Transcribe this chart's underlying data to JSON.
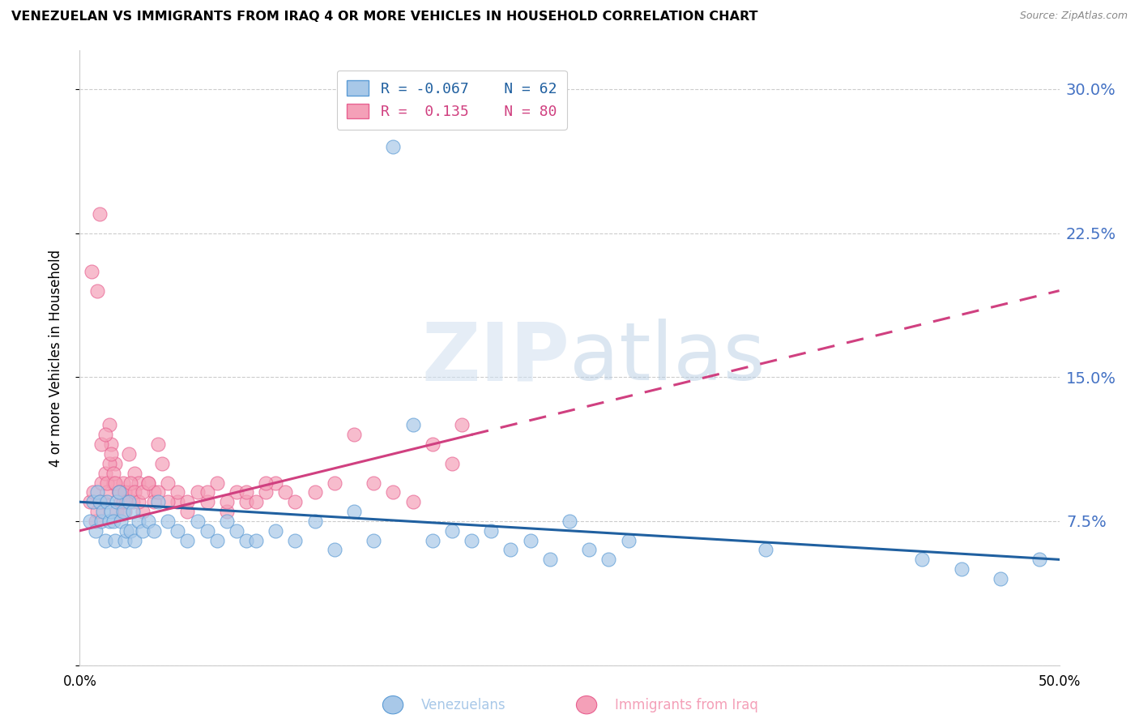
{
  "title": "VENEZUELAN VS IMMIGRANTS FROM IRAQ 4 OR MORE VEHICLES IN HOUSEHOLD CORRELATION CHART",
  "source": "Source: ZipAtlas.com",
  "ylabel": "4 or more Vehicles in Household",
  "xmin": 0.0,
  "xmax": 50.0,
  "ymin": 0.0,
  "ymax": 32.0,
  "yticks": [
    0.0,
    7.5,
    15.0,
    22.5,
    30.0
  ],
  "ytick_labels": [
    "",
    "7.5%",
    "15.0%",
    "22.5%",
    "30.0%"
  ],
  "blue_color": "#a8c8e8",
  "pink_color": "#f4a0b8",
  "blue_edge": "#5b9bd5",
  "pink_edge": "#e86090",
  "trend_blue": "#2060a0",
  "trend_pink": "#d04080",
  "legend_R_blue": "-0.067",
  "legend_N_blue": "62",
  "legend_R_pink": "0.135",
  "legend_N_pink": "80",
  "legend_label_blue": "Venezuelans",
  "legend_label_pink": "Immigrants from Iraq",
  "watermark_zip": "ZIP",
  "watermark_atlas": "atlas",
  "blue_x": [
    0.5,
    0.7,
    0.8,
    0.9,
    1.0,
    1.1,
    1.2,
    1.3,
    1.4,
    1.5,
    1.6,
    1.7,
    1.8,
    1.9,
    2.0,
    2.1,
    2.2,
    2.3,
    2.4,
    2.5,
    2.6,
    2.7,
    2.8,
    3.0,
    3.2,
    3.5,
    3.8,
    4.0,
    4.5,
    5.0,
    5.5,
    6.0,
    6.5,
    7.0,
    7.5,
    8.0,
    8.5,
    9.0,
    10.0,
    11.0,
    12.0,
    13.0,
    14.0,
    15.0,
    16.0,
    17.0,
    18.0,
    19.0,
    20.0,
    21.0,
    22.0,
    23.0,
    24.0,
    25.0,
    26.0,
    27.0,
    28.0,
    35.0,
    43.0,
    45.0,
    47.0,
    49.0
  ],
  "blue_y": [
    7.5,
    8.5,
    7.0,
    9.0,
    8.5,
    7.5,
    8.0,
    6.5,
    8.5,
    7.5,
    8.0,
    7.5,
    6.5,
    8.5,
    9.0,
    7.5,
    8.0,
    6.5,
    7.0,
    8.5,
    7.0,
    8.0,
    6.5,
    7.5,
    7.0,
    7.5,
    7.0,
    8.5,
    7.5,
    7.0,
    6.5,
    7.5,
    7.0,
    6.5,
    7.5,
    7.0,
    6.5,
    6.5,
    7.0,
    6.5,
    7.5,
    6.0,
    8.0,
    6.5,
    27.0,
    12.5,
    6.5,
    7.0,
    6.5,
    7.0,
    6.0,
    6.5,
    5.5,
    7.5,
    6.0,
    5.5,
    6.5,
    6.0,
    5.5,
    5.0,
    4.5,
    5.5
  ],
  "pink_x": [
    0.5,
    0.7,
    0.8,
    0.9,
    1.0,
    1.1,
    1.2,
    1.3,
    1.4,
    1.5,
    1.6,
    1.7,
    1.8,
    1.9,
    2.0,
    2.1,
    2.2,
    2.3,
    2.4,
    2.5,
    2.6,
    2.7,
    2.8,
    3.0,
    3.2,
    3.5,
    3.8,
    4.0,
    4.2,
    4.5,
    5.0,
    5.5,
    6.0,
    6.5,
    7.0,
    7.5,
    8.0,
    8.5,
    9.0,
    9.5,
    10.0,
    10.5,
    11.0,
    12.0,
    13.0,
    14.0,
    15.0,
    16.0,
    17.0,
    18.0,
    19.0,
    0.6,
    0.9,
    1.0,
    1.1,
    1.3,
    1.4,
    1.5,
    1.6,
    1.7,
    1.8,
    2.0,
    2.2,
    2.3,
    2.4,
    2.6,
    2.8,
    3.0,
    3.2,
    3.5,
    3.8,
    4.0,
    4.5,
    5.0,
    5.5,
    6.5,
    7.5,
    8.5,
    9.5,
    19.5
  ],
  "pink_y": [
    8.5,
    9.0,
    7.5,
    8.0,
    23.5,
    9.5,
    8.5,
    10.0,
    9.0,
    12.5,
    11.5,
    9.5,
    10.5,
    8.0,
    9.0,
    8.5,
    9.5,
    8.0,
    8.5,
    11.0,
    9.0,
    8.5,
    10.0,
    9.5,
    8.0,
    9.5,
    9.0,
    11.5,
    10.5,
    9.5,
    8.5,
    8.0,
    9.0,
    8.5,
    9.5,
    8.0,
    9.0,
    8.5,
    8.5,
    9.0,
    9.5,
    9.0,
    8.5,
    9.0,
    9.5,
    12.0,
    9.5,
    9.0,
    8.5,
    11.5,
    10.5,
    20.5,
    19.5,
    8.5,
    11.5,
    12.0,
    9.5,
    10.5,
    11.0,
    10.0,
    9.5,
    9.0,
    8.5,
    9.0,
    8.5,
    9.5,
    9.0,
    8.5,
    9.0,
    9.5,
    8.5,
    9.0,
    8.5,
    9.0,
    8.5,
    9.0,
    8.5,
    9.0,
    9.5,
    12.5
  ]
}
